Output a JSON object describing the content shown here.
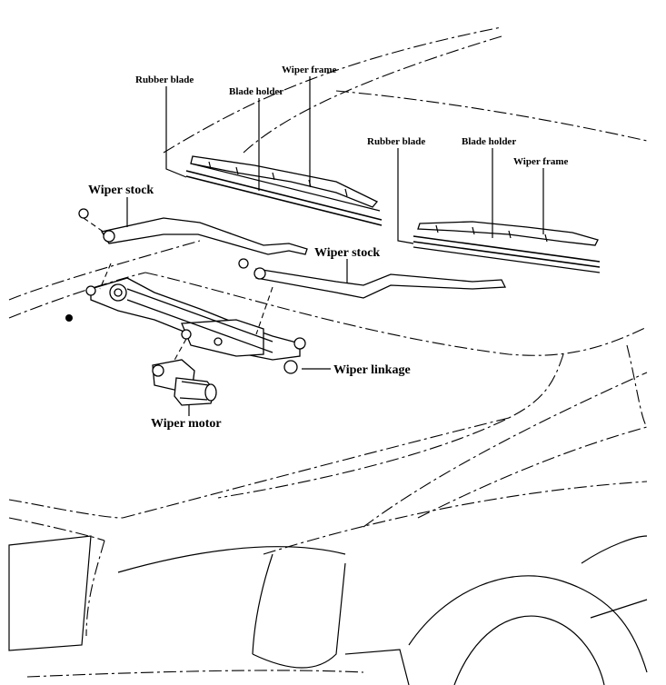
{
  "labels": {
    "left_rubber_blade": "Rubber blade",
    "left_blade_holder": "Blade holder",
    "left_wiper_frame": "Wiper frame",
    "right_rubber_blade": "Rubber blade",
    "right_blade_holder": "Blade holder",
    "right_wiper_frame": "Wiper frame",
    "wiper_stock_left": "Wiper stock",
    "wiper_stock_right": "Wiper stock",
    "wiper_linkage": "Wiper linkage",
    "wiper_motor": "Wiper motor"
  }
}
